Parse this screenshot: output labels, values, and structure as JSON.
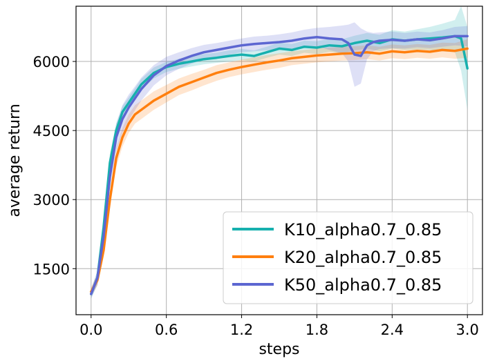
{
  "chart_data": {
    "type": "line",
    "title": "",
    "xlabel": "steps",
    "ylabel": "average return",
    "xlim": [
      -0.12,
      3.12
    ],
    "ylim": [
      500,
      7200
    ],
    "xticks": [
      0.0,
      0.6,
      1.2,
      1.8,
      2.4,
      3.0
    ],
    "xtick_labels": [
      "0.0",
      "0.6",
      "1.2",
      "1.8",
      "2.4",
      "3.0"
    ],
    "yticks": [
      1500,
      3000,
      4500,
      6000
    ],
    "ytick_labels": [
      "1500",
      "3000",
      "4500",
      "6000"
    ],
    "grid": true,
    "legend_position": "lower-right",
    "series": [
      {
        "name": "K10_alpha0.7_0.85",
        "color": "#17b0ae",
        "x": [
          0.0,
          0.05,
          0.1,
          0.15,
          0.2,
          0.25,
          0.3,
          0.4,
          0.5,
          0.6,
          0.7,
          0.8,
          0.9,
          1.0,
          1.1,
          1.2,
          1.3,
          1.4,
          1.5,
          1.6,
          1.7,
          1.8,
          1.9,
          2.0,
          2.1,
          2.2,
          2.3,
          2.4,
          2.5,
          2.6,
          2.7,
          2.8,
          2.9,
          2.95,
          3.0
        ],
        "values": [
          950,
          1300,
          2400,
          3800,
          4500,
          4900,
          5100,
          5500,
          5750,
          5880,
          5950,
          6000,
          6050,
          6080,
          6120,
          6150,
          6120,
          6200,
          6280,
          6250,
          6320,
          6300,
          6350,
          6330,
          6400,
          6450,
          6400,
          6480,
          6450,
          6480,
          6500,
          6520,
          6550,
          6500,
          5850
        ],
        "band": [
          100,
          150,
          200,
          200,
          150,
          130,
          120,
          120,
          120,
          110,
          110,
          110,
          110,
          110,
          120,
          120,
          120,
          120,
          130,
          130,
          130,
          140,
          140,
          150,
          160,
          170,
          180,
          200,
          200,
          220,
          250,
          300,
          350,
          700,
          900
        ]
      },
      {
        "name": "K20_alpha0.7_0.85",
        "color": "#ff7f0e",
        "x": [
          0.0,
          0.05,
          0.1,
          0.15,
          0.2,
          0.25,
          0.3,
          0.35,
          0.4,
          0.5,
          0.6,
          0.7,
          0.8,
          0.9,
          1.0,
          1.1,
          1.2,
          1.3,
          1.4,
          1.5,
          1.6,
          1.7,
          1.8,
          1.9,
          2.0,
          2.1,
          2.2,
          2.3,
          2.4,
          2.5,
          2.6,
          2.7,
          2.8,
          2.9,
          3.0
        ],
        "values": [
          1000,
          1250,
          1900,
          3000,
          3900,
          4350,
          4650,
          4850,
          4950,
          5150,
          5300,
          5450,
          5550,
          5650,
          5750,
          5820,
          5880,
          5930,
          5980,
          6020,
          6070,
          6100,
          6130,
          6150,
          6170,
          6180,
          6200,
          6170,
          6220,
          6200,
          6230,
          6210,
          6250,
          6230,
          6280
        ],
        "band": [
          100,
          120,
          150,
          180,
          200,
          200,
          200,
          200,
          200,
          200,
          190,
          180,
          180,
          170,
          170,
          160,
          160,
          160,
          160,
          160,
          150,
          150,
          150,
          150,
          150,
          150,
          150,
          150,
          150,
          150,
          150,
          150,
          160,
          170,
          200
        ]
      },
      {
        "name": "K50_alpha0.7_0.85",
        "color": "#5c66d1",
        "x": [
          0.0,
          0.05,
          0.1,
          0.15,
          0.2,
          0.25,
          0.3,
          0.35,
          0.4,
          0.5,
          0.6,
          0.7,
          0.8,
          0.9,
          1.0,
          1.1,
          1.2,
          1.3,
          1.4,
          1.5,
          1.6,
          1.7,
          1.8,
          1.9,
          2.0,
          2.05,
          2.1,
          2.15,
          2.2,
          2.25,
          2.3,
          2.4,
          2.5,
          2.6,
          2.7,
          2.8,
          2.9,
          3.0
        ],
        "values": [
          950,
          1300,
          2200,
          3500,
          4350,
          4750,
          5000,
          5200,
          5400,
          5700,
          5900,
          6020,
          6120,
          6200,
          6250,
          6300,
          6350,
          6380,
          6400,
          6420,
          6450,
          6500,
          6530,
          6500,
          6480,
          6400,
          6150,
          6120,
          6350,
          6420,
          6450,
          6470,
          6450,
          6480,
          6460,
          6500,
          6550,
          6550
        ],
        "band": [
          100,
          150,
          200,
          250,
          300,
          300,
          280,
          260,
          250,
          220,
          200,
          180,
          170,
          160,
          150,
          150,
          150,
          160,
          160,
          170,
          180,
          190,
          200,
          250,
          300,
          400,
          700,
          600,
          300,
          200,
          180,
          180,
          170,
          170,
          170,
          180,
          200,
          220
        ]
      }
    ]
  }
}
